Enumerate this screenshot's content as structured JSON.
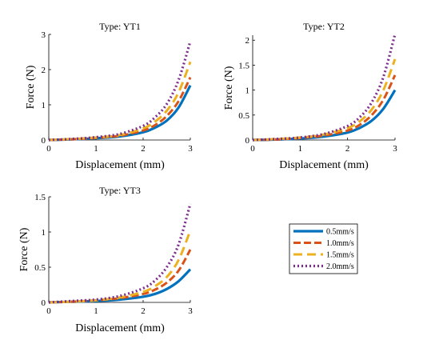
{
  "legend": {
    "entries": [
      "0.5mm/s",
      "1.0mm/s",
      "1.5mm/s",
      "2.0mm/s"
    ],
    "placement": "separate panel, lower-right",
    "box": true
  },
  "colors": {
    "0.5mm/s": "#0072BD",
    "1.0mm/s": "#D95319",
    "1.5mm/s": "#EDB120",
    "2.0mm/s": "#7E2F8E"
  },
  "chart_data": [
    {
      "type": "line",
      "title": "Type: YT1",
      "xlabel": "Displacement (mm)",
      "ylabel": "Force (N)",
      "xlim": [
        0,
        3
      ],
      "ylim": [
        0,
        3
      ],
      "xticks": [
        "0",
        "1",
        "2",
        "3"
      ],
      "yticks": [
        "0",
        "1",
        "2",
        "3"
      ],
      "grid": false,
      "x": [
        0,
        0.5,
        1,
        1.5,
        2,
        2.25,
        2.5,
        2.75,
        3
      ],
      "series": [
        {
          "name": "0.5mm/s",
          "values": [
            0,
            0.02,
            0.05,
            0.1,
            0.22,
            0.35,
            0.55,
            0.92,
            1.55
          ]
        },
        {
          "name": "1.0mm/s",
          "values": [
            0,
            0.02,
            0.06,
            0.12,
            0.27,
            0.42,
            0.68,
            1.1,
            1.78
          ]
        },
        {
          "name": "1.5mm/s",
          "values": [
            0,
            0.03,
            0.07,
            0.14,
            0.33,
            0.52,
            0.83,
            1.35,
            2.22
          ]
        },
        {
          "name": "2.0mm/s",
          "values": [
            0,
            0.03,
            0.08,
            0.17,
            0.4,
            0.64,
            1.02,
            1.7,
            2.8
          ]
        }
      ]
    },
    {
      "type": "line",
      "title": "Type: YT2",
      "xlabel": "Displacement (mm)",
      "ylabel": "Force (N)",
      "xlim": [
        0,
        3
      ],
      "ylim": [
        0,
        2.1
      ],
      "xticks": [
        "0",
        "1",
        "2",
        "3"
      ],
      "yticks": [
        "0",
        "0.5",
        "1",
        "1.5",
        "2"
      ],
      "grid": false,
      "x": [
        0,
        0.5,
        1,
        1.5,
        2,
        2.25,
        2.5,
        2.75,
        3
      ],
      "series": [
        {
          "name": "0.5mm/s",
          "values": [
            0,
            0.01,
            0.03,
            0.07,
            0.15,
            0.24,
            0.38,
            0.62,
            1.0
          ]
        },
        {
          "name": "1.0mm/s",
          "values": [
            0,
            0.01,
            0.04,
            0.09,
            0.19,
            0.3,
            0.49,
            0.8,
            1.3
          ]
        },
        {
          "name": "1.5mm/s",
          "values": [
            0,
            0.02,
            0.05,
            0.11,
            0.24,
            0.37,
            0.6,
            0.99,
            1.62
          ]
        },
        {
          "name": "2.0mm/s",
          "values": [
            0,
            0.02,
            0.05,
            0.12,
            0.28,
            0.45,
            0.74,
            1.25,
            2.12
          ]
        }
      ]
    },
    {
      "type": "line",
      "title": "Type: YT3",
      "xlabel": "Displacement (mm)",
      "ylabel": "Force (N)",
      "xlim": [
        0,
        3
      ],
      "ylim": [
        0,
        1.5
      ],
      "xticks": [
        "0",
        "1",
        "2",
        "3"
      ],
      "yticks": [
        "0",
        "0.5",
        "1",
        "1.5"
      ],
      "grid": false,
      "x": [
        0,
        0.5,
        1,
        1.5,
        2,
        2.25,
        2.5,
        2.75,
        3
      ],
      "series": [
        {
          "name": "0.5mm/s",
          "values": [
            0,
            0.01,
            0.02,
            0.04,
            0.08,
            0.12,
            0.19,
            0.3,
            0.47
          ]
        },
        {
          "name": "1.0mm/s",
          "values": [
            0,
            0.01,
            0.03,
            0.06,
            0.12,
            0.18,
            0.28,
            0.45,
            0.75
          ]
        },
        {
          "name": "1.5mm/s",
          "values": [
            0,
            0.01,
            0.03,
            0.07,
            0.15,
            0.23,
            0.36,
            0.6,
            1.02
          ]
        },
        {
          "name": "2.0mm/s",
          "values": [
            0,
            0.02,
            0.04,
            0.09,
            0.2,
            0.31,
            0.5,
            0.82,
            1.4
          ]
        }
      ]
    }
  ]
}
